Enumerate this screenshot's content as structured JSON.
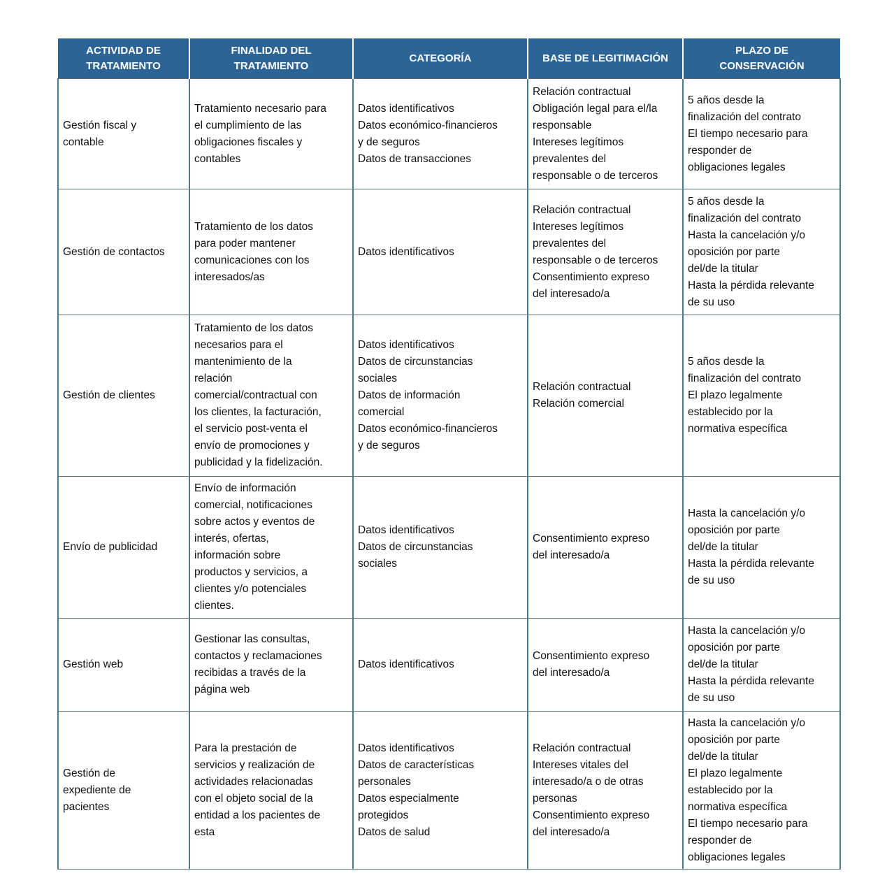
{
  "table": {
    "headers": [
      [
        "ACTIVIDAD DE",
        "TRATAMIENTO"
      ],
      [
        "FINALIDAD DEL",
        "TRATAMIENTO"
      ],
      [
        "CATEGORÍA"
      ],
      [
        "BASE DE LEGITIMACIÓN"
      ],
      [
        "PLAZO DE",
        "CONSERVACIÓN"
      ]
    ],
    "header_color": "#2c6496",
    "rows": [
      [
        [
          "Gestión fiscal y",
          "contable"
        ],
        [
          "Tratamiento necesario para",
          "el cumplimiento de las",
          "obligaciones fiscales y",
          "contables"
        ],
        [
          "Datos identificativos",
          "Datos económico-financieros",
          "y de seguros",
          "Datos de transacciones"
        ],
        [
          "Relación contractual",
          "Obligación legal para el/la",
          "responsable",
          "Intereses legítimos",
          "prevalentes del",
          "responsable o de terceros"
        ],
        [
          "5 años desde la",
          "finalización del contrato",
          "El tiempo necesario para",
          "responder de",
          "obligaciones legales"
        ]
      ],
      [
        [
          "Gestión de contactos"
        ],
        [
          "Tratamiento de los datos",
          "para poder mantener",
          "comunicaciones con los",
          "interesados/as"
        ],
        [
          "Datos identificativos"
        ],
        [
          "Relación contractual",
          "Intereses legítimos",
          "prevalentes del",
          "responsable o de terceros",
          "Consentimiento expreso",
          "del interesado/a"
        ],
        [
          "5 años desde la",
          "finalización del contrato",
          "Hasta la cancelación y/o",
          "oposición por parte",
          "del/de la titular",
          "Hasta la pérdida relevante",
          "de su uso"
        ]
      ],
      [
        [
          "Gestión de clientes"
        ],
        [
          "Tratamiento de los datos",
          "necesarios para el",
          "mantenimiento de la",
          "relación",
          "comercial/contractual con",
          "los clientes, la facturación,",
          "el servicio post-venta  el",
          "envío de promociones y",
          "publicidad y la fidelización."
        ],
        [
          "Datos identificativos",
          "Datos de circunstancias",
          "sociales",
          "Datos de información",
          "comercial",
          "Datos económico-financieros",
          "y de seguros"
        ],
        [
          "Relación contractual",
          "Relación comercial"
        ],
        [
          "5 años desde la",
          "finalización del contrato",
          "El plazo legalmente",
          "establecido por la",
          "normativa específica"
        ]
      ],
      [
        [
          "Envío de publicidad"
        ],
        [
          "Envío de información",
          "comercial, notificaciones",
          "sobre actos y eventos de",
          "interés, ofertas,",
          "información sobre",
          "productos y servicios, a",
          "clientes y/o potenciales",
          "clientes."
        ],
        [
          "Datos identificativos",
          "Datos de circunstancias",
          "sociales"
        ],
        [
          "Consentimiento expreso",
          "del interesado/a"
        ],
        [
          "Hasta la cancelación y/o",
          "oposición por parte",
          "del/de la titular",
          "Hasta la pérdida relevante",
          "de su uso"
        ]
      ],
      [
        [
          "Gestión web"
        ],
        [
          "Gestionar las consultas,",
          "contactos y reclamaciones",
          "recibidas a través de la",
          "página web"
        ],
        [
          "Datos identificativos"
        ],
        [
          "Consentimiento expreso",
          "del interesado/a"
        ],
        [
          "Hasta la cancelación y/o",
          "oposición por parte",
          "del/de la titular",
          "Hasta la pérdida relevante",
          "de su uso"
        ]
      ],
      [
        [
          "Gestión de",
          "expediente de",
          "pacientes"
        ],
        [
          "Para la prestación de",
          "servicios y realización de",
          "actividades relacionadas",
          "con el objeto social de la",
          "entidad a los pacientes de",
          "esta"
        ],
        [
          "Datos identificativos",
          "Datos de características",
          "personales",
          "Datos especialmente",
          "protegidos",
          "Datos de salud"
        ],
        [
          "Relación contractual",
          "Intereses vitales del",
          "interesado/a o de otras",
          "personas",
          "Consentimiento expreso",
          "del interesado/a"
        ],
        [
          "Hasta la cancelación y/o",
          "oposición por parte",
          "del/de la titular",
          "El plazo legalmente",
          "establecido por la",
          "normativa específica",
          "El tiempo necesario para",
          "responder de",
          "obligaciones legales"
        ]
      ]
    ]
  }
}
